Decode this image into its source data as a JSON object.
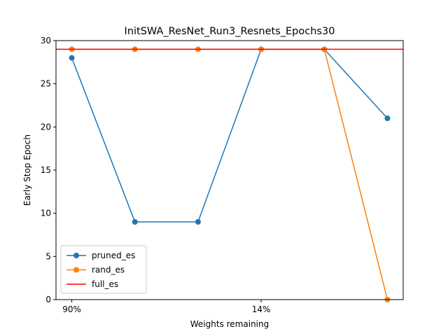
{
  "chart_data": {
    "type": "line",
    "title": "InitSWA_ResNet_Run3_Resnets_Epochs30",
    "xlabel": "Weights remaining",
    "ylabel": "Early Stop Epoch",
    "ylim": [
      0,
      30
    ],
    "yticks": [
      0,
      5,
      10,
      15,
      20,
      25,
      30
    ],
    "x": [
      0,
      1,
      2,
      3,
      4,
      5
    ],
    "xlim": [
      -0.25,
      5.25
    ],
    "xticks": [
      {
        "x": 0,
        "label": "90%"
      },
      {
        "x": 3,
        "label": "14%"
      }
    ],
    "grid": false,
    "legend_position": "lower-left",
    "series": [
      {
        "name": "pruned_es",
        "color": "#1f77b4",
        "marker": "circle",
        "values": [
          28,
          9,
          9,
          29,
          29,
          21
        ]
      },
      {
        "name": "rand_es",
        "color": "#ff7f0e",
        "marker": "circle",
        "values": [
          29,
          29,
          29,
          29,
          29,
          0
        ]
      },
      {
        "name": "full_es",
        "color": "#ff0000",
        "marker": "none",
        "constant": 29
      }
    ]
  }
}
